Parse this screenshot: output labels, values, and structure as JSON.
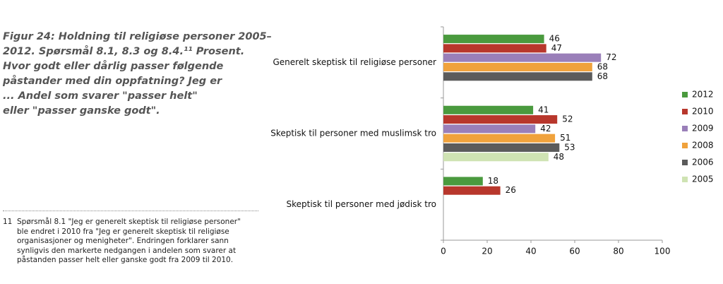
{
  "caption": [
    "Figur 24: Holdning til religiøse personer 2005–",
    "2012. Spørsmål 8.1, 8.3 og 8.4.¹¹ Prosent.",
    "Hvor godt eller dårlig passer følgende",
    "påstander med din oppfatning? Jeg er",
    "... Andel som svarer \"passer helt\"",
    "eller \"passer ganske godt\"."
  ],
  "footnote": {
    "number": "11",
    "lines": [
      "Spørsmål 8.1 \"Jeg er generelt skeptisk til religiøse personer\"",
      "ble endret i 2010 fra \"Jeg er generelt skeptisk til religiøse",
      "organisasjoner og menigheter\". Endringen forklarer sann",
      "synligvis den markerte nedgangen i andelen som svarer at",
      "påstanden passer helt eller ganske godt fra 2009 til 2010."
    ]
  },
  "chart_data": {
    "type": "hbar",
    "categories": [
      "Generelt skeptisk til religiøse personer",
      "Skeptisk til personer med muslimsk tro",
      "Skeptisk til personer med jødisk tro"
    ],
    "series": [
      {
        "name": "2012",
        "color": "#4a9a3e",
        "values": [
          46,
          41,
          18
        ]
      },
      {
        "name": "2010",
        "color": "#b8372c",
        "values": [
          47,
          52,
          26
        ]
      },
      {
        "name": "2009",
        "color": "#9a7fb9",
        "values": [
          72,
          42,
          null
        ]
      },
      {
        "name": "2008",
        "color": "#f0a23c",
        "values": [
          68,
          51,
          null
        ]
      },
      {
        "name": "2006",
        "color": "#5b5b5b",
        "values": [
          68,
          53,
          null
        ]
      },
      {
        "name": "2005",
        "color": "#cfe3b3",
        "values": [
          null,
          48,
          null
        ]
      }
    ],
    "xlim": [
      0,
      100
    ],
    "xticks": [
      0,
      20,
      40,
      60,
      80,
      100
    ],
    "legend": "right"
  }
}
